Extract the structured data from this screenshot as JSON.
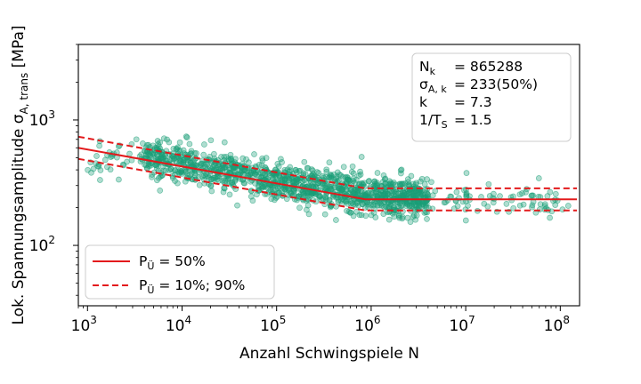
{
  "chart_data": {
    "type": "scatter",
    "xscale": "log",
    "yscale": "log",
    "xlim": [
      800,
      160000000
    ],
    "ylim": [
      33,
      4000
    ],
    "grid": false,
    "xlabel": "Anzahl Schwingspiele N",
    "ylabel": {
      "main": "Lok. Spannungsamplitude σ",
      "sub": "A, trans",
      "unit": " [MPa]"
    },
    "x_ticks": [
      {
        "value": 1000,
        "base": "10",
        "exp": "3"
      },
      {
        "value": 10000,
        "base": "10",
        "exp": "4"
      },
      {
        "value": 100000,
        "base": "10",
        "exp": "5"
      },
      {
        "value": 1000000,
        "base": "10",
        "exp": "6"
      },
      {
        "value": 10000000,
        "base": "10",
        "exp": "7"
      },
      {
        "value": 100000000,
        "base": "10",
        "exp": "8"
      }
    ],
    "y_ticks": [
      {
        "value": 100,
        "base": "10",
        "exp": "2"
      },
      {
        "value": 1000,
        "base": "10",
        "exp": "3"
      }
    ],
    "scatter": {
      "color": "#1a9e77",
      "description_points": [
        [
          1000,
          420
        ],
        [
          2500,
          540
        ],
        [
          5000,
          500
        ],
        [
          10000,
          440
        ],
        [
          20000,
          400
        ],
        [
          50000,
          350
        ],
        [
          100000,
          320
        ],
        [
          200000,
          300
        ],
        [
          500000,
          280
        ],
        [
          865288,
          260
        ],
        [
          2000000,
          240
        ],
        [
          5000000,
          230
        ],
        [
          10000000,
          230
        ],
        [
          20000000,
          230
        ],
        [
          50000000,
          230
        ],
        [
          100000000,
          220
        ]
      ]
    },
    "fit_lines": [
      {
        "legend_label": "P",
        "legend_sub": "Ü",
        "legend_rest": " = 50%",
        "style": "solid",
        "color": "#e31a1c",
        "points": [
          [
            800,
            600
          ],
          [
            865288,
            233
          ],
          [
            150000000,
            233
          ]
        ]
      },
      {
        "legend_label": "P",
        "legend_sub": "Ü",
        "legend_rest": " = 10%; 90%",
        "style": "dashed",
        "color": "#e31a1c",
        "bands": [
          [
            [
              800,
              735
            ],
            [
              865288,
              285
            ],
            [
              150000000,
              285
            ]
          ],
          [
            [
              800,
              490
            ],
            [
              865288,
              190
            ],
            [
              150000000,
              190
            ]
          ]
        ]
      }
    ],
    "info_box": [
      {
        "symbol": "N",
        "sub": "k",
        "text": "= 865288"
      },
      {
        "symbol": "σ",
        "sub": "A, k",
        "text": "= 233(50%)"
      },
      {
        "symbol": "k",
        "sub": "",
        "text": "= 7.3"
      },
      {
        "symbol": "1/T",
        "sub": "S",
        "text": "= 1.5"
      }
    ]
  }
}
